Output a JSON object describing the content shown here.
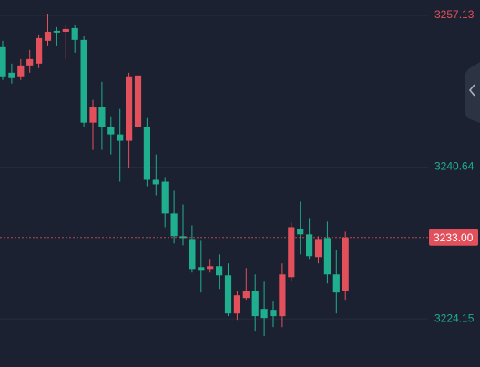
{
  "chart_data": {
    "type": "candlestick",
    "ohlc": [
      [
        3253.68,
        3254.37,
        3250.12,
        3250.42
      ],
      [
        3250.91,
        3251.9,
        3249.73,
        3250.32
      ],
      [
        3250.42,
        3252.39,
        3250.12,
        3251.7
      ],
      [
        3251.7,
        3253.38,
        3250.91,
        3252.39
      ],
      [
        3251.9,
        3255.06,
        3251.4,
        3254.66
      ],
      [
        3254.37,
        3257.33,
        3253.87,
        3255.35
      ],
      [
        3255.45,
        3255.85,
        3253.87,
        3255.26
      ],
      [
        3255.35,
        3256.05,
        3252.39,
        3255.65
      ],
      [
        3255.75,
        3256.05,
        3253.08,
        3254.47
      ],
      [
        3254.47,
        3254.86,
        3244.99,
        3245.48
      ],
      [
        3245.48,
        3247.95,
        3242.52,
        3247.16
      ],
      [
        3247.16,
        3249.92,
        3242.52,
        3244.99
      ],
      [
        3244.99,
        3246.17,
        3242.02,
        3244.2
      ],
      [
        3244.2,
        3246.96,
        3239.06,
        3243.51
      ],
      [
        3243.51,
        3250.91,
        3240.54,
        3250.42
      ],
      [
        3244.99,
        3251.7,
        3243.01,
        3250.61
      ],
      [
        3244.99,
        3245.97,
        3238.57,
        3239.26
      ],
      [
        3239.26,
        3242.02,
        3237.58,
        3238.77
      ],
      [
        3239.06,
        3239.56,
        3234.12,
        3235.61
      ],
      [
        3235.61,
        3238.07,
        3232.35,
        3233.14
      ],
      [
        3233.14,
        3236.59,
        3232.15,
        3232.94
      ],
      [
        3232.84,
        3234.32,
        3229.19,
        3229.58
      ],
      [
        3229.78,
        3232.64,
        3227.02,
        3229.38
      ],
      [
        3229.58,
        3230.67,
        3229.19,
        3229.88
      ],
      [
        3229.88,
        3231.16,
        3227.41,
        3228.89
      ],
      [
        3228.89,
        3230.18,
        3224.45,
        3224.74
      ],
      [
        3224.74,
        3227.21,
        3224.05,
        3226.72
      ],
      [
        3226.42,
        3229.68,
        3226.23,
        3227.21
      ],
      [
        3227.21,
        3228.99,
        3222.77,
        3224.45
      ],
      [
        3225.24,
        3228.2,
        3222.28,
        3224.25
      ],
      [
        3225.14,
        3226.03,
        3223.26,
        3224.45
      ],
      [
        3224.45,
        3230.18,
        3223.26,
        3228.99
      ],
      [
        3228.69,
        3234.62,
        3228.2,
        3234.12
      ],
      [
        3233.93,
        3236.89,
        3231.16,
        3233.34
      ],
      [
        3233.34,
        3235.11,
        3230.67,
        3230.97
      ],
      [
        3230.87,
        3233.14,
        3230.18,
        3232.84
      ],
      [
        3232.94,
        3234.72,
        3228.0,
        3228.99
      ],
      [
        3228.99,
        3231.66,
        3224.74,
        3227.02
      ],
      [
        3227.21,
        3233.63,
        3226.23,
        3233.0
      ]
    ],
    "up_color": "#e2505c",
    "down_color": "#1fae8e",
    "ylim": [
      3218.92,
      3258.81
    ],
    "yticks": [
      3257.13,
      3240.64,
      3224.15
    ],
    "ytick_colors": [
      "#e2505c",
      "#1fae8e",
      "#1fae8e"
    ],
    "last_price": {
      "value": 3233,
      "label": "3233.00"
    },
    "grid": true
  }
}
